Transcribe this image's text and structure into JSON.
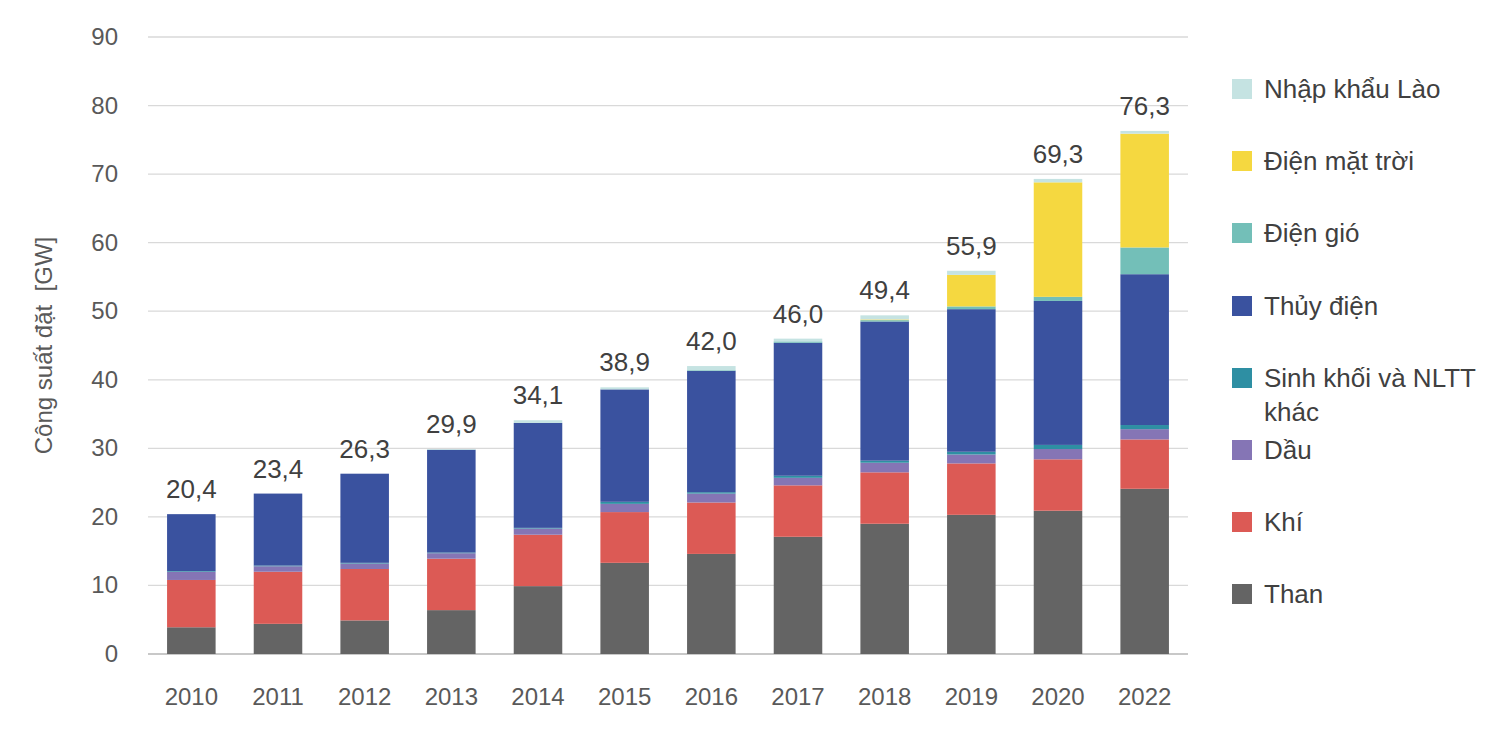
{
  "chart_data": {
    "type": "bar",
    "stacked": true,
    "grid": true,
    "legend": "right",
    "y_label": "Công suất đặt  [GW]",
    "categories": [
      "2010",
      "2011",
      "2012",
      "2013",
      "2014",
      "2015",
      "2016",
      "2017",
      "2018",
      "2019",
      "2020",
      "2022"
    ],
    "ylim": [
      0,
      90
    ],
    "yticks": [
      0,
      10,
      20,
      30,
      40,
      50,
      60,
      70,
      80,
      90
    ],
    "series": [
      {
        "name": "Than",
        "color": "#646464",
        "values": [
          3.9,
          4.4,
          4.9,
          6.4,
          9.9,
          13.3,
          14.6,
          17.1,
          19.0,
          20.3,
          20.9,
          24.1
        ]
      },
      {
        "name": "Khí",
        "color": "#dc5a55",
        "values": [
          6.9,
          7.6,
          7.5,
          7.5,
          7.5,
          7.4,
          7.5,
          7.5,
          7.5,
          7.5,
          7.5,
          7.2
        ]
      },
      {
        "name": "Dầu",
        "color": "#8575b5",
        "values": [
          1.2,
          0.8,
          0.8,
          0.8,
          0.9,
          1.2,
          1.3,
          1.1,
          1.4,
          1.3,
          1.5,
          1.5
        ]
      },
      {
        "name": "Sinh khối và NLTT khác",
        "color": "#2e8fa3",
        "values": [
          0.1,
          0.1,
          0.1,
          0.1,
          0.1,
          0.3,
          0.2,
          0.3,
          0.3,
          0.4,
          0.6,
          0.6
        ]
      },
      {
        "name": "Thủy điện",
        "color": "#3a529f",
        "values": [
          8.3,
          10.5,
          13.0,
          15.0,
          15.3,
          16.4,
          17.7,
          19.4,
          20.3,
          20.8,
          21.0,
          22.0
        ]
      },
      {
        "name": "Điện gió",
        "color": "#73bfb8",
        "values": [
          0,
          0,
          0,
          0,
          0,
          0,
          0.1,
          0.2,
          0.2,
          0.4,
          0.6,
          3.9
        ]
      },
      {
        "name": "Điện mặt trời",
        "color": "#f5d840",
        "values": [
          0,
          0,
          0,
          0,
          0,
          0,
          0,
          0,
          0.1,
          4.6,
          16.7,
          16.6
        ]
      },
      {
        "name": "Nhập khẩu Lào",
        "color": "#c5e3e2",
        "values": [
          0,
          0,
          0,
          0.1,
          0.4,
          0.3,
          0.6,
          0.4,
          0.6,
          0.6,
          0.5,
          0.4
        ]
      }
    ],
    "totals": [
      20.4,
      23.4,
      26.3,
      29.9,
      34.1,
      38.9,
      42.0,
      46.0,
      49.4,
      55.9,
      69.3,
      76.3
    ],
    "total_labels": [
      "20,4",
      "23,4",
      "26,3",
      "29,9",
      "34,1",
      "38,9",
      "42,0",
      "46,0",
      "49,4",
      "55,9",
      "69,3",
      "76,3"
    ]
  }
}
